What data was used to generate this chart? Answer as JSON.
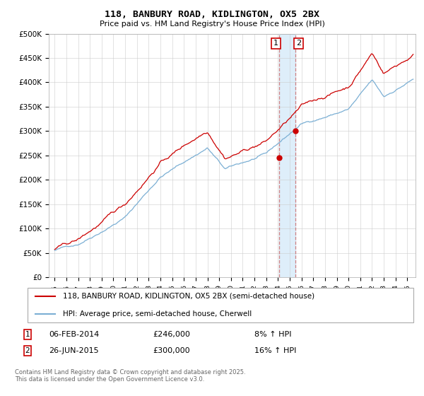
{
  "title": "118, BANBURY ROAD, KIDLINGTON, OX5 2BX",
  "subtitle": "Price paid vs. HM Land Registry's House Price Index (HPI)",
  "legend_line1": "118, BANBURY ROAD, KIDLINGTON, OX5 2BX (semi-detached house)",
  "legend_line2": "HPI: Average price, semi-detached house, Cherwell",
  "footer": "Contains HM Land Registry data © Crown copyright and database right 2025.\nThis data is licensed under the Open Government Licence v3.0.",
  "annotation1_label": "1",
  "annotation1_date": "06-FEB-2014",
  "annotation1_price": "£246,000",
  "annotation1_hpi": "8% ↑ HPI",
  "annotation2_label": "2",
  "annotation2_date": "26-JUN-2015",
  "annotation2_price": "£300,000",
  "annotation2_hpi": "16% ↑ HPI",
  "red_color": "#cc0000",
  "blue_color": "#7bafd4",
  "dashed_color": "#cc6666",
  "ylim_min": 0,
  "ylim_max": 500000,
  "yticks": [
    0,
    50000,
    100000,
    150000,
    200000,
    250000,
    300000,
    350000,
    400000,
    450000,
    500000
  ],
  "ytick_labels": [
    "£0",
    "£50K",
    "£100K",
    "£150K",
    "£200K",
    "£250K",
    "£300K",
    "£350K",
    "£400K",
    "£450K",
    "£500K"
  ],
  "transaction1_x": 2014.09,
  "transaction1_y": 246000,
  "transaction2_x": 2015.49,
  "transaction2_y": 300000,
  "vline_x1": 2014.09,
  "vline_x2": 2015.49,
  "xlim_min": 1994.5,
  "xlim_max": 2025.7
}
